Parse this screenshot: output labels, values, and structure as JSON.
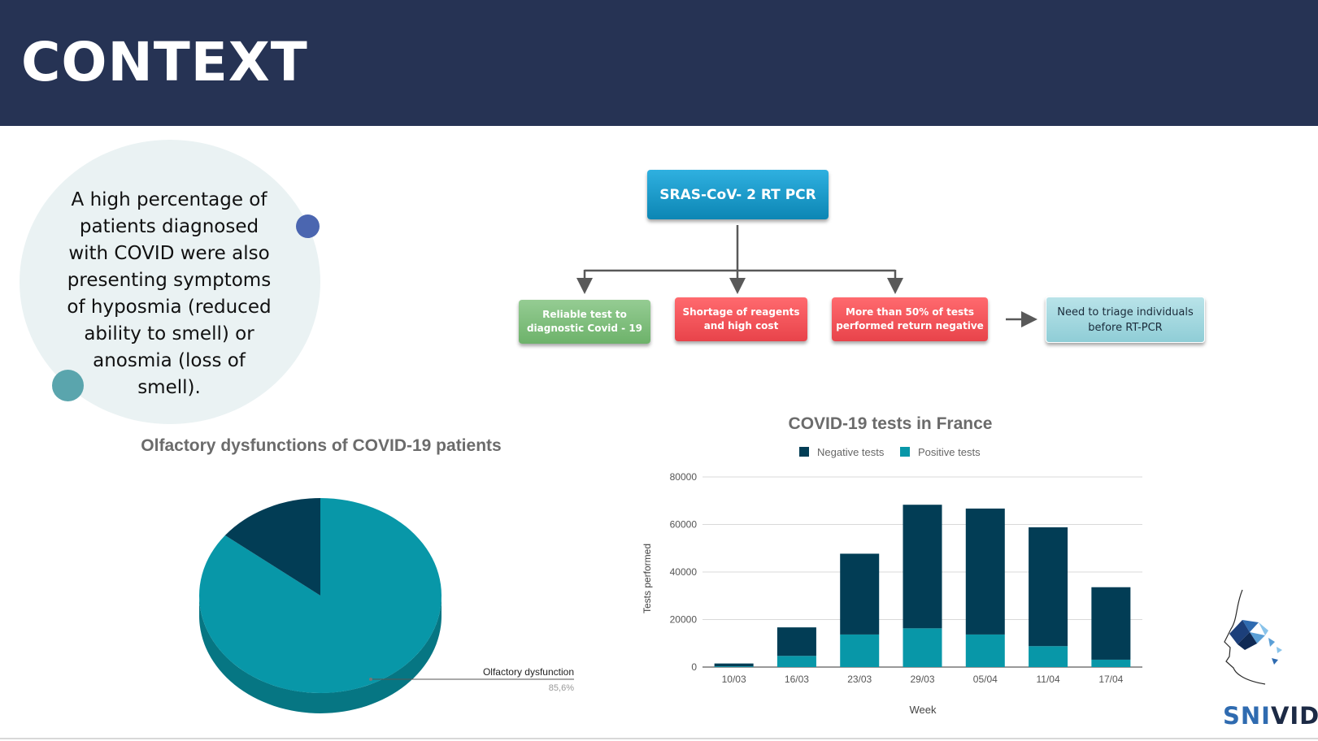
{
  "header": {
    "title": "CONTEXT"
  },
  "intro": {
    "text": "A high percentage of patients diagnosed with COVID were also presenting symptoms of hyposmia (reduced ability to smell) or anosmia (loss of smell)."
  },
  "flow": {
    "root": "SRAS-CoV- 2 RT PCR",
    "branches": [
      "Reliable test to diagnostic Covid - 19",
      "Shortage of reagents and high cost",
      "More than 50% of tests performed return negative"
    ],
    "result": "Need to triage individuals before RT-PCR"
  },
  "logo": {
    "part1": "SNI",
    "part2": "VID"
  },
  "colors": {
    "header_bg": "#263354",
    "negative": "#023d55",
    "positive": "#0897a8"
  },
  "chart_data": [
    {
      "type": "pie",
      "title": "Olfactory dysfunctions of COVID-19 patients",
      "slices": [
        {
          "label": "Olfactory dysfunction",
          "value": 85.6,
          "display": "85,6%",
          "color": "#0897a8"
        },
        {
          "label": "",
          "value": 14.4,
          "color": "#023d55"
        }
      ],
      "style": "3d"
    },
    {
      "type": "bar",
      "stacked": true,
      "title": "COVID-19 tests in France",
      "xlabel": "Week",
      "ylabel": "Tests performed",
      "categories": [
        "10/03",
        "16/03",
        "23/03",
        "29/03",
        "05/04",
        "11/04",
        "17/04"
      ],
      "series": [
        {
          "name": "Negative tests",
          "color": "#023d55",
          "values": [
            1200,
            12000,
            34000,
            52000,
            53000,
            50000,
            30500
          ]
        },
        {
          "name": "Positive tests",
          "color": "#0897a8",
          "values": [
            300,
            4700,
            13700,
            16300,
            13700,
            8800,
            3100
          ]
        }
      ],
      "ylim": [
        0,
        80000
      ],
      "yticks": [
        0,
        20000,
        40000,
        60000,
        80000
      ],
      "grid": true,
      "legend": "top"
    }
  ]
}
